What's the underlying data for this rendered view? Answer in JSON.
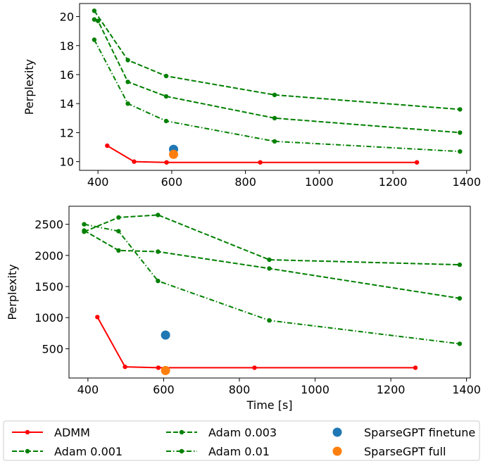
{
  "chart_data": [
    {
      "type": "line",
      "xlabel": "",
      "ylabel": "Perplexity",
      "xlim": [
        350,
        1410
      ],
      "ylim": [
        9.4,
        20.9
      ],
      "xticks": [
        400,
        600,
        800,
        1000,
        1200,
        1400
      ],
      "yticks": [
        10,
        12,
        14,
        16,
        18,
        20
      ],
      "grid": false,
      "series": [
        {
          "name": "ADMM",
          "style": "solid",
          "color": "#ff0000",
          "x": [
            425,
            498,
            586,
            840,
            1265
          ],
          "y": [
            11.1,
            10.0,
            9.95,
            9.95,
            9.95
          ]
        },
        {
          "name": "Adam 0.001",
          "style": "dashed",
          "color": "#008000",
          "x": [
            390,
            481,
            585,
            879,
            1382
          ],
          "y": [
            20.4,
            17.0,
            15.9,
            14.6,
            13.6
          ]
        },
        {
          "name": "Adam 0.003",
          "style": "dashed",
          "color": "#008000",
          "x": [
            390,
            400,
            481,
            585,
            879,
            1382
          ],
          "y": [
            19.8,
            19.7,
            15.5,
            14.5,
            13.0,
            12.0
          ]
        },
        {
          "name": "Adam 0.01",
          "style": "dashdot",
          "color": "#008000",
          "x": [
            390,
            481,
            585,
            879,
            1382
          ],
          "y": [
            18.4,
            14.0,
            12.8,
            11.4,
            10.7
          ]
        }
      ],
      "markers": [
        {
          "name": "SparseGPT finetune",
          "color": "#1f77b4",
          "x": 605,
          "y": 10.85
        },
        {
          "name": "SparseGPT full",
          "color": "#ff7f0e",
          "x": 605,
          "y": 10.5
        }
      ]
    },
    {
      "type": "line",
      "xlabel": "Time [s]",
      "ylabel": "Perplexity",
      "xlim": [
        350,
        1410
      ],
      "ylim": [
        30,
        2790
      ],
      "xticks": [
        400,
        600,
        800,
        1000,
        1200,
        1400
      ],
      "yticks": [
        500,
        1000,
        1500,
        2000,
        2500
      ],
      "grid": false,
      "series": [
        {
          "name": "ADMM",
          "style": "solid",
          "color": "#ff0000",
          "x": [
            425,
            498,
            586,
            840,
            1265
          ],
          "y": [
            1010,
            210,
            195,
            195,
            195
          ]
        },
        {
          "name": "Adam 0.001",
          "style": "dashed",
          "color": "#008000",
          "x": [
            390,
            481,
            585,
            879,
            1382
          ],
          "y": [
            2380,
            2610,
            2650,
            1930,
            1850
          ]
        },
        {
          "name": "Adam 0.003",
          "style": "dashed",
          "color": "#008000",
          "x": [
            390,
            481,
            585,
            879,
            1382
          ],
          "y": [
            2400,
            2080,
            2060,
            1790,
            1310
          ]
        },
        {
          "name": "Adam 0.01",
          "style": "dashdot",
          "color": "#008000",
          "x": [
            390,
            481,
            585,
            879,
            1382
          ],
          "y": [
            2500,
            2390,
            1590,
            955,
            580
          ]
        }
      ],
      "markers": [
        {
          "name": "SparseGPT finetune",
          "color": "#1f77b4",
          "x": 605,
          "y": 720
        },
        {
          "name": "SparseGPT full",
          "color": "#ff7f0e",
          "x": 605,
          "y": 150
        }
      ]
    }
  ],
  "legend": {
    "placement": "bottom",
    "items": [
      {
        "label": "ADMM",
        "kind": "line",
        "style": "solid",
        "color": "#ff0000"
      },
      {
        "label": "Adam 0.001",
        "kind": "line",
        "style": "dashed",
        "color": "#008000"
      },
      {
        "label": "Adam 0.003",
        "kind": "line",
        "style": "dashed",
        "color": "#008000"
      },
      {
        "label": "Adam 0.01",
        "kind": "line",
        "style": "dashdot",
        "color": "#008000"
      },
      {
        "label": "SparseGPT finetune",
        "kind": "marker",
        "color": "#1f77b4"
      },
      {
        "label": "SparseGPT full",
        "kind": "marker",
        "color": "#ff7f0e"
      }
    ]
  }
}
